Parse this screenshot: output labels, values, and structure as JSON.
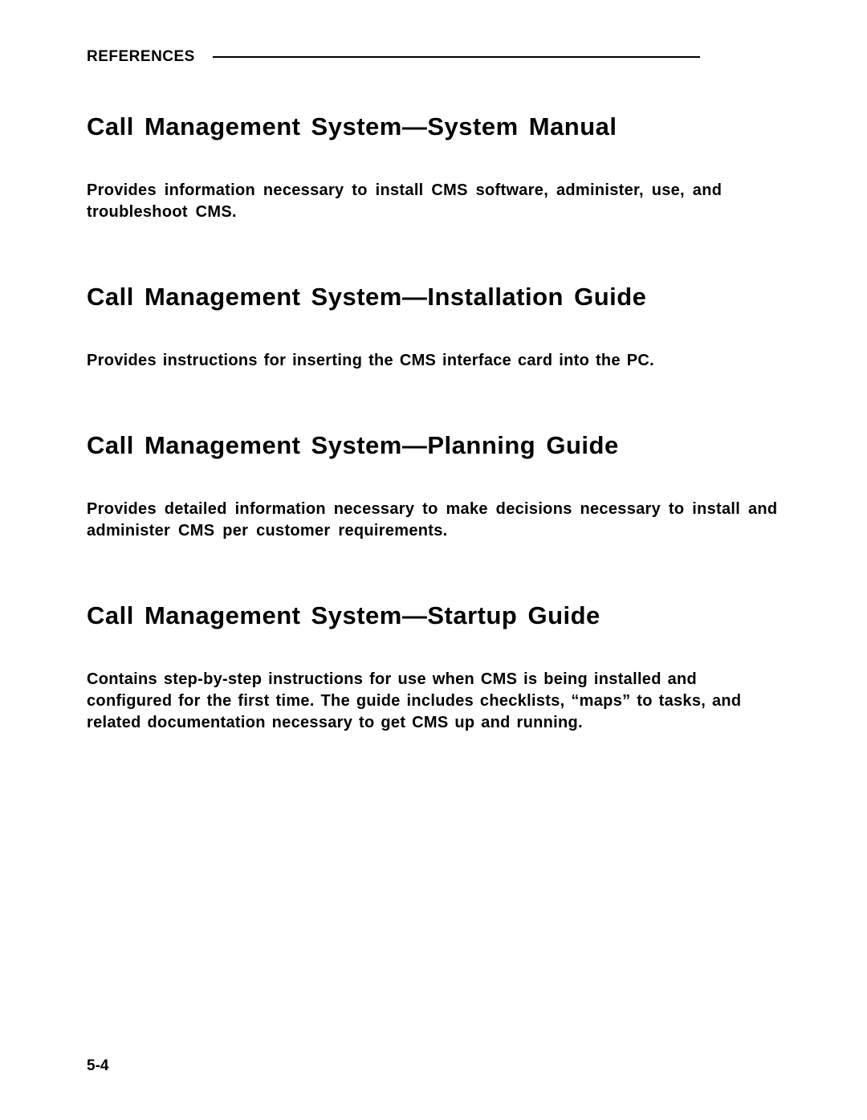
{
  "header": {
    "label": "REFERENCES"
  },
  "sections": [
    {
      "heading": "Call Management System—System Manual",
      "body": "Provides information necessary to install CMS software, administer, use, and troubleshoot CMS."
    },
    {
      "heading": "Call Management System—Installation Guide",
      "body": "Provides instructions for inserting the CMS interface card into the PC."
    },
    {
      "heading": "Call Management System—Planning Guide",
      "body": "Provides detailed information necessary to make decisions necessary to install and administer CMS per customer requirements."
    },
    {
      "heading": "Call Management System—Startup Guide",
      "body": "Contains step-by-step instructions for use when CMS is being installed and configured for the first time. The guide includes checklists, “maps” to tasks, and related documentation necessary to get CMS up and running."
    }
  ],
  "footer": {
    "page_number": "5-4"
  }
}
